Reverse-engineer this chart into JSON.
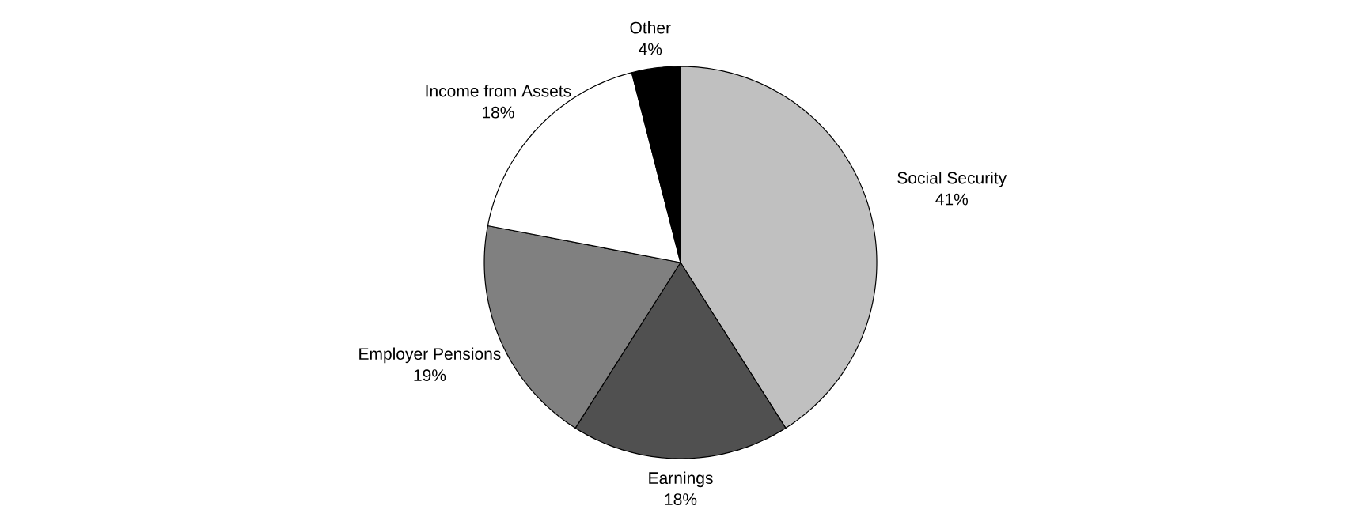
{
  "chart_data": {
    "type": "pie",
    "categories": [
      "Social Security",
      "Earnings",
      "Employer Pensions",
      "Income from Assets",
      "Other"
    ],
    "values": [
      41,
      18,
      19,
      18,
      4
    ],
    "colors": [
      "#c0c0c0",
      "#505050",
      "#808080",
      "#ffffff",
      "#000000"
    ],
    "value_labels": [
      "41%",
      "18%",
      "19%",
      "18%",
      "4%"
    ]
  }
}
